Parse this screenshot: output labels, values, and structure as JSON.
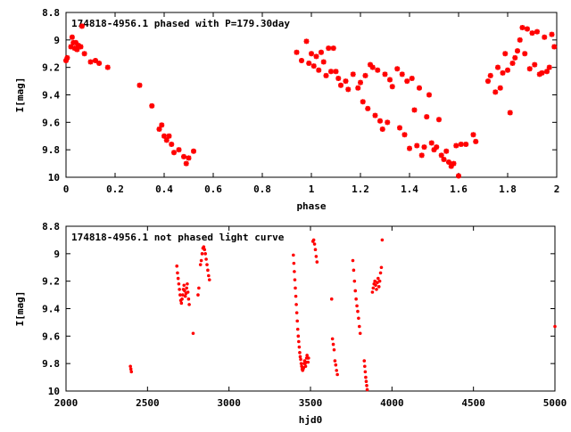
{
  "chart_data": [
    {
      "type": "scatter",
      "title": "174818-4956.1 phased with P=179.30day",
      "xlabel": "phase",
      "ylabel": "I[mag]",
      "xlim": [
        0,
        2
      ],
      "ylim": [
        8.8,
        10
      ],
      "y_inverted": true,
      "x_ticks": [
        0,
        0.2,
        0.4,
        0.6,
        0.8,
        1,
        1.2,
        1.4,
        1.6,
        1.8,
        2
      ],
      "x_tick_labels": [
        "0",
        "0.2",
        "0.4",
        "0.6",
        "0.8",
        "1",
        "1.2",
        "1.4",
        "1.6",
        "1.8",
        "2"
      ],
      "y_ticks": [
        8.8,
        9,
        9.2,
        9.4,
        9.6,
        9.8,
        10
      ],
      "y_tick_labels": [
        "8.8",
        "9",
        "9.2",
        "9.4",
        "9.6",
        "9.8",
        "10"
      ],
      "grid": false,
      "marker": "star",
      "marker_color": "#ff0000",
      "points": [
        [
          0.0,
          9.15
        ],
        [
          0.005,
          9.13
        ],
        [
          0.02,
          9.05
        ],
        [
          0.025,
          8.98
        ],
        [
          0.03,
          9.02
        ],
        [
          0.035,
          9.06
        ],
        [
          0.04,
          9.02
        ],
        [
          0.045,
          9.07
        ],
        [
          0.05,
          9.04
        ],
        [
          0.06,
          9.05
        ],
        [
          0.065,
          8.9
        ],
        [
          0.075,
          9.1
        ],
        [
          0.1,
          9.16
        ],
        [
          0.12,
          9.15
        ],
        [
          0.135,
          9.17
        ],
        [
          0.17,
          9.2
        ],
        [
          0.3,
          9.33
        ],
        [
          0.35,
          9.48
        ],
        [
          0.38,
          9.65
        ],
        [
          0.39,
          9.62
        ],
        [
          0.4,
          9.7
        ],
        [
          0.41,
          9.73
        ],
        [
          0.42,
          9.7
        ],
        [
          0.43,
          9.76
        ],
        [
          0.44,
          9.82
        ],
        [
          0.46,
          9.8
        ],
        [
          0.48,
          9.85
        ],
        [
          0.49,
          9.9
        ],
        [
          0.5,
          9.86
        ],
        [
          0.52,
          9.81
        ],
        [
          0.94,
          9.09
        ],
        [
          0.96,
          9.15
        ],
        [
          0.98,
          9.01
        ],
        [
          0.99,
          9.17
        ],
        [
          1.0,
          9.1
        ],
        [
          1.01,
          9.19
        ],
        [
          1.02,
          9.12
        ],
        [
          1.03,
          9.22
        ],
        [
          1.04,
          9.09
        ],
        [
          1.05,
          9.16
        ],
        [
          1.06,
          9.26
        ],
        [
          1.07,
          9.06
        ],
        [
          1.08,
          9.23
        ],
        [
          1.09,
          9.06
        ],
        [
          1.1,
          9.23
        ],
        [
          1.11,
          9.28
        ],
        [
          1.12,
          9.33
        ],
        [
          1.14,
          9.3
        ],
        [
          1.15,
          9.36
        ],
        [
          1.17,
          9.25
        ],
        [
          1.19,
          9.35
        ],
        [
          1.2,
          9.31
        ],
        [
          1.21,
          9.45
        ],
        [
          1.22,
          9.26
        ],
        [
          1.23,
          9.5
        ],
        [
          1.24,
          9.18
        ],
        [
          1.25,
          9.2
        ],
        [
          1.26,
          9.55
        ],
        [
          1.27,
          9.22
        ],
        [
          1.28,
          9.59
        ],
        [
          1.29,
          9.65
        ],
        [
          1.3,
          9.25
        ],
        [
          1.31,
          9.6
        ],
        [
          1.32,
          9.29
        ],
        [
          1.33,
          9.34
        ],
        [
          1.35,
          9.21
        ],
        [
          1.36,
          9.64
        ],
        [
          1.37,
          9.25
        ],
        [
          1.38,
          9.69
        ],
        [
          1.39,
          9.3
        ],
        [
          1.4,
          9.79
        ],
        [
          1.41,
          9.28
        ],
        [
          1.42,
          9.51
        ],
        [
          1.43,
          9.77
        ],
        [
          1.44,
          9.35
        ],
        [
          1.45,
          9.84
        ],
        [
          1.46,
          9.78
        ],
        [
          1.47,
          9.56
        ],
        [
          1.48,
          9.4
        ],
        [
          1.49,
          9.75
        ],
        [
          1.5,
          9.8
        ],
        [
          1.51,
          9.78
        ],
        [
          1.52,
          9.58
        ],
        [
          1.53,
          9.84
        ],
        [
          1.54,
          9.87
        ],
        [
          1.55,
          9.81
        ],
        [
          1.56,
          9.89
        ],
        [
          1.57,
          9.92
        ],
        [
          1.58,
          9.9
        ],
        [
          1.59,
          9.77
        ],
        [
          1.6,
          9.99
        ],
        [
          1.61,
          9.76
        ],
        [
          1.63,
          9.76
        ],
        [
          1.66,
          9.69
        ],
        [
          1.67,
          9.74
        ],
        [
          1.72,
          9.3
        ],
        [
          1.73,
          9.26
        ],
        [
          1.75,
          9.38
        ],
        [
          1.76,
          9.2
        ],
        [
          1.77,
          9.35
        ],
        [
          1.78,
          9.24
        ],
        [
          1.79,
          9.1
        ],
        [
          1.8,
          9.22
        ],
        [
          1.81,
          9.53
        ],
        [
          1.82,
          9.17
        ],
        [
          1.83,
          9.13
        ],
        [
          1.84,
          9.08
        ],
        [
          1.85,
          9.0
        ],
        [
          1.86,
          8.91
        ],
        [
          1.87,
          9.1
        ],
        [
          1.88,
          8.92
        ],
        [
          1.89,
          9.21
        ],
        [
          1.9,
          8.95
        ],
        [
          1.91,
          9.18
        ],
        [
          1.92,
          8.94
        ],
        [
          1.93,
          9.25
        ],
        [
          1.94,
          9.24
        ],
        [
          1.95,
          8.98
        ],
        [
          1.96,
          9.23
        ],
        [
          1.97,
          9.2
        ],
        [
          1.98,
          8.96
        ],
        [
          1.99,
          9.05
        ]
      ]
    },
    {
      "type": "scatter",
      "title": "174818-4956.1 not phased light curve",
      "xlabel": "hjd0",
      "ylabel": "I[mag]",
      "xlim": [
        2000,
        5000
      ],
      "ylim": [
        8.8,
        10
      ],
      "y_inverted": true,
      "x_ticks": [
        2000,
        2500,
        3000,
        3500,
        4000,
        4500,
        5000
      ],
      "x_tick_labels": [
        "2000",
        "2500",
        "3000",
        "3500",
        "4000",
        "4500",
        "5000"
      ],
      "y_ticks": [
        8.8,
        9,
        9.2,
        9.4,
        9.6,
        9.8,
        10
      ],
      "y_tick_labels": [
        "8.8",
        "9",
        "9.2",
        "9.4",
        "9.6",
        "9.8",
        "10"
      ],
      "grid": false,
      "marker": "dot",
      "marker_color": "#ff0000",
      "points": [
        [
          2395,
          9.82
        ],
        [
          2398,
          9.84
        ],
        [
          2401,
          9.86
        ],
        [
          2680,
          9.09
        ],
        [
          2684,
          9.14
        ],
        [
          2688,
          9.18
        ],
        [
          2692,
          9.22
        ],
        [
          2696,
          9.26
        ],
        [
          2700,
          9.3
        ],
        [
          2704,
          9.34
        ],
        [
          2708,
          9.36
        ],
        [
          2712,
          9.33
        ],
        [
          2716,
          9.3
        ],
        [
          2720,
          9.26
        ],
        [
          2724,
          9.23
        ],
        [
          2728,
          9.27
        ],
        [
          2732,
          9.31
        ],
        [
          2736,
          9.29
        ],
        [
          2740,
          9.25
        ],
        [
          2744,
          9.22
        ],
        [
          2748,
          9.28
        ],
        [
          2752,
          9.33
        ],
        [
          2756,
          9.37
        ],
        [
          2780,
          9.58
        ],
        [
          2810,
          9.3
        ],
        [
          2815,
          9.25
        ],
        [
          2825,
          9.08
        ],
        [
          2830,
          9.05
        ],
        [
          2835,
          9.0
        ],
        [
          2840,
          8.96
        ],
        [
          2845,
          8.95
        ],
        [
          2850,
          8.97
        ],
        [
          2855,
          9.0
        ],
        [
          2860,
          9.04
        ],
        [
          2865,
          9.08
        ],
        [
          2870,
          9.12
        ],
        [
          2875,
          9.16
        ],
        [
          2880,
          9.19
        ],
        [
          3395,
          9.01
        ],
        [
          3398,
          9.07
        ],
        [
          3401,
          9.13
        ],
        [
          3404,
          9.19
        ],
        [
          3407,
          9.25
        ],
        [
          3410,
          9.31
        ],
        [
          3413,
          9.37
        ],
        [
          3416,
          9.43
        ],
        [
          3419,
          9.49
        ],
        [
          3422,
          9.55
        ],
        [
          3425,
          9.6
        ],
        [
          3428,
          9.64
        ],
        [
          3431,
          9.68
        ],
        [
          3434,
          9.72
        ],
        [
          3437,
          9.75
        ],
        [
          3440,
          9.77
        ],
        [
          3443,
          9.8
        ],
        [
          3446,
          9.82
        ],
        [
          3449,
          9.84
        ],
        [
          3452,
          9.85
        ],
        [
          3455,
          9.84
        ],
        [
          3458,
          9.83
        ],
        [
          3461,
          9.8
        ],
        [
          3464,
          9.78
        ],
        [
          3467,
          9.8
        ],
        [
          3470,
          9.82
        ],
        [
          3473,
          9.79
        ],
        [
          3476,
          9.76
        ],
        [
          3479,
          9.74
        ],
        [
          3482,
          9.76
        ],
        [
          3485,
          9.79
        ],
        [
          3488,
          9.76
        ],
        [
          3515,
          8.91
        ],
        [
          3520,
          8.9
        ],
        [
          3525,
          8.93
        ],
        [
          3530,
          8.97
        ],
        [
          3535,
          9.02
        ],
        [
          3540,
          9.06
        ],
        [
          3630,
          9.33
        ],
        [
          3635,
          9.62
        ],
        [
          3640,
          9.66
        ],
        [
          3645,
          9.7
        ],
        [
          3650,
          9.78
        ],
        [
          3655,
          9.81
        ],
        [
          3660,
          9.85
        ],
        [
          3665,
          9.88
        ],
        [
          3760,
          9.05
        ],
        [
          3765,
          9.12
        ],
        [
          3770,
          9.2
        ],
        [
          3775,
          9.27
        ],
        [
          3780,
          9.33
        ],
        [
          3785,
          9.38
        ],
        [
          3790,
          9.42
        ],
        [
          3795,
          9.47
        ],
        [
          3800,
          9.53
        ],
        [
          3805,
          9.58
        ],
        [
          3830,
          9.78
        ],
        [
          3833,
          9.82
        ],
        [
          3836,
          9.86
        ],
        [
          3839,
          9.9
        ],
        [
          3842,
          9.93
        ],
        [
          3845,
          9.96
        ],
        [
          3848,
          9.99
        ],
        [
          3880,
          9.28
        ],
        [
          3885,
          9.25
        ],
        [
          3890,
          9.22
        ],
        [
          3895,
          9.2
        ],
        [
          3900,
          9.23
        ],
        [
          3905,
          9.26
        ],
        [
          3910,
          9.21
        ],
        [
          3915,
          9.18
        ],
        [
          3920,
          9.24
        ],
        [
          3925,
          9.2
        ],
        [
          3930,
          9.14
        ],
        [
          3935,
          9.1
        ],
        [
          3940,
          8.9
        ],
        [
          5000,
          9.53
        ]
      ]
    }
  ]
}
